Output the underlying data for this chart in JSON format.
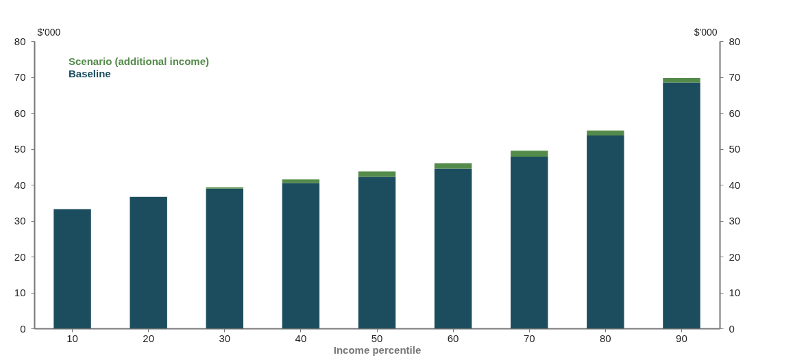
{
  "chart_data": {
    "type": "bar",
    "stacked": true,
    "xlabel": "Income percentile",
    "ylabel": "$'000",
    "y2label": "$'000",
    "categories": [
      "10",
      "20",
      "30",
      "40",
      "50",
      "60",
      "70",
      "80",
      "90"
    ],
    "series": [
      {
        "name": "Baseline",
        "color": "#1b4d5e",
        "values": [
          33.2,
          36.6,
          38.9,
          40.5,
          42.2,
          44.5,
          47.8,
          53.7,
          68.5
        ]
      },
      {
        "name": "Scenario (additional income)",
        "color": "#548b4a",
        "values": [
          0,
          0,
          0.4,
          1.0,
          1.5,
          1.5,
          1.7,
          1.4,
          1.2
        ]
      }
    ],
    "ylim": [
      0,
      80
    ],
    "yticks": [
      0,
      10,
      20,
      30,
      40,
      50,
      60,
      70,
      80
    ],
    "y2lim": [
      0,
      80
    ],
    "y2ticks": [
      0,
      10,
      20,
      30,
      40,
      50,
      60,
      70,
      80
    ],
    "grid": false,
    "legend": "top left"
  }
}
